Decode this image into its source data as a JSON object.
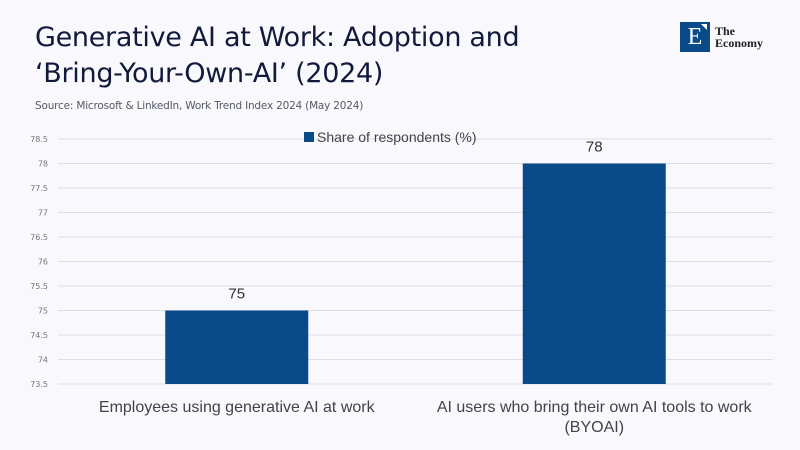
{
  "header": {
    "title_line1": "Generative AI at Work: Adoption and",
    "title_line2": "‘Bring-Your-Own-AI’ (2024)",
    "source": "Source:  Microsoft & LinkedIn, Work Trend Index 2024 (May 2024)"
  },
  "logo": {
    "icon": "E",
    "line1": "The",
    "line2": "Economy",
    "color": "#0b4a88"
  },
  "chart_data": {
    "type": "bar",
    "title": "Generative AI at Work: Adoption and ‘Bring-Your-Own-AI’ (2024)",
    "categories": [
      "Employees using generative AI at work",
      "AI users who bring their own AI tools to work (BYOAI)"
    ],
    "series": [
      {
        "name": "Share of respondents (%)",
        "values": [
          75,
          78
        ],
        "color": "#0b4a88"
      }
    ],
    "data_labels": [
      "75",
      "78"
    ],
    "xlabel": "",
    "ylabel": "",
    "ylim": [
      73.5,
      78.5
    ],
    "yticks": [
      73.5,
      74,
      74.5,
      75,
      75.5,
      76,
      76.5,
      77,
      77.5,
      78,
      78.5
    ],
    "ytick_labels": [
      "73.5",
      "74",
      "74.5",
      "75",
      "75.5",
      "76",
      "76.5",
      "77",
      "77.5",
      "78",
      "78.5"
    ],
    "grid": true,
    "legend_position": "top-center"
  }
}
